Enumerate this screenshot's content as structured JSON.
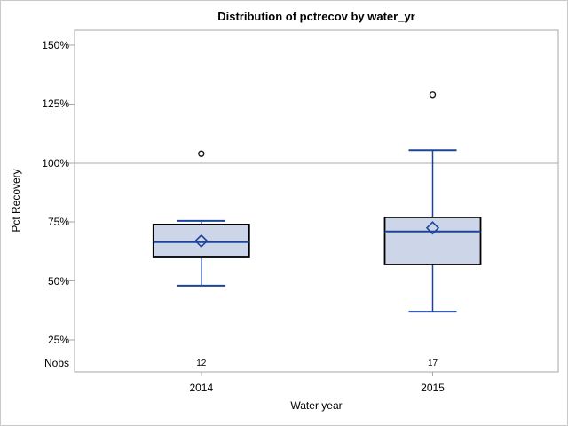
{
  "figure": {
    "title": "Distribution of pctrecov by water_yr"
  },
  "y_axis": {
    "label": "Pct Recovery",
    "ticks": [
      "150%",
      "125%",
      "100%",
      "75%",
      "50%",
      "25%"
    ],
    "tick_values": [
      150,
      125,
      100,
      75,
      50,
      25
    ],
    "nobs_label": "Nobs"
  },
  "x_axis": {
    "label": "Water year",
    "categories": [
      "2014",
      "2015"
    ]
  },
  "chart_data": {
    "type": "box",
    "title": "Distribution of pctrecov by water_yr",
    "xlabel": "Water year",
    "ylabel": "Pct Recovery",
    "unit": "percent",
    "ylim": [
      11,
      156
    ],
    "yticks": [
      25,
      50,
      75,
      100,
      125,
      150
    ],
    "gridline_at": 100,
    "grid": "single-reference-line",
    "legend": "none",
    "categories": [
      "2014",
      "2015"
    ],
    "series": [
      {
        "category": "2014",
        "nobs": "12",
        "whisker_low": 48,
        "q1": 60,
        "median": 66.5,
        "mean": 67,
        "q3": 74,
        "whisker_high": 75.5,
        "outliers": [
          104
        ]
      },
      {
        "category": "2015",
        "nobs": "17",
        "whisker_low": 37,
        "q1": 57,
        "median": 71,
        "mean": 72.5,
        "q3": 77,
        "whisker_high": 105.5,
        "outliers": [
          129
        ]
      }
    ]
  },
  "colors": {
    "box_fill": "#ccd6e8",
    "box_stroke": "#000000",
    "line_blue": "#1c449c",
    "outlier_stroke": "#1a1a1a",
    "frame_gray": "#a3a8ad",
    "grid_gray": "#a9a9a9",
    "figure_border": "#c9c9c9",
    "text": "#000000"
  }
}
